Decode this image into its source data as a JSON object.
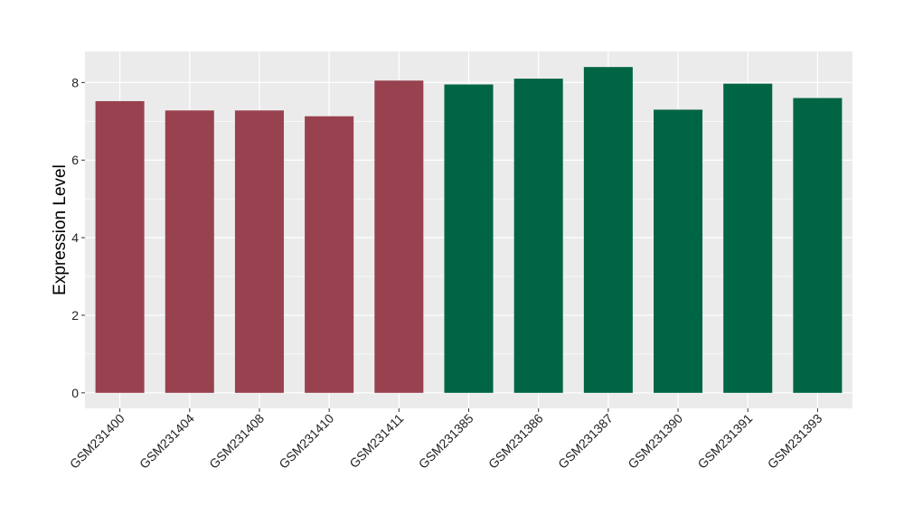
{
  "chart_data": {
    "type": "bar",
    "title": "",
    "xlabel": "",
    "ylabel": "Expression Level",
    "ylim": [
      -0.4,
      8.8
    ],
    "yticks": [
      0,
      2,
      4,
      6,
      8
    ],
    "grid": true,
    "legend": "none",
    "categories": [
      "GSM231400",
      "GSM231404",
      "GSM231408",
      "GSM231410",
      "GSM231411",
      "GSM231385",
      "GSM231386",
      "GSM231387",
      "GSM231390",
      "GSM231391",
      "GSM231393"
    ],
    "values": [
      7.52,
      7.28,
      7.28,
      7.13,
      8.05,
      7.95,
      8.1,
      8.4,
      7.3,
      7.97,
      7.6
    ],
    "bar_colors": [
      "#98414f",
      "#98414f",
      "#98414f",
      "#98414f",
      "#98414f",
      "#006544",
      "#006544",
      "#006544",
      "#006544",
      "#006544",
      "#006544"
    ],
    "panel_color": "#ebebeb",
    "grid_color": "#ffffff"
  }
}
